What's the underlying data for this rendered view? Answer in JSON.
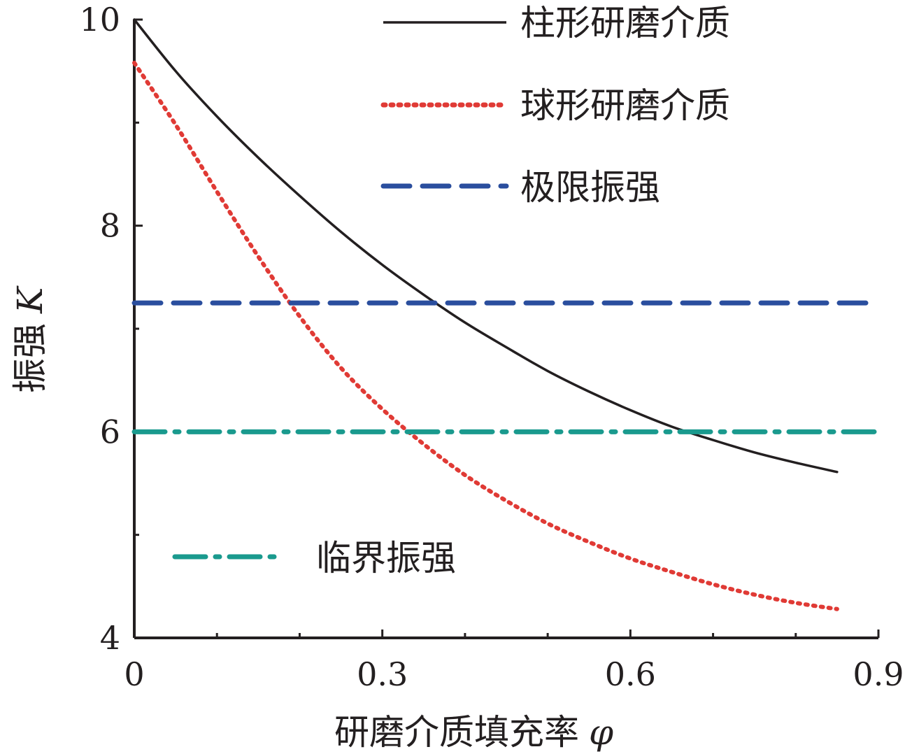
{
  "chart_data": {
    "type": "line",
    "xlabel": "研磨介质填充率",
    "xlabel_symbol": "φ",
    "ylabel": "振强",
    "ylabel_symbol": "K",
    "xlim": [
      0,
      0.9
    ],
    "ylim": [
      4,
      10
    ],
    "x_ticks": [
      {
        "value": 0,
        "label": "0"
      },
      {
        "value": 0.3,
        "label": "0.3"
      },
      {
        "value": 0.6,
        "label": "0.6"
      },
      {
        "value": 0.9,
        "label": "0.9"
      }
    ],
    "x_minor_ticks": [
      0.1,
      0.2,
      0.4,
      0.5,
      0.7,
      0.8
    ],
    "y_ticks": [
      {
        "value": 4,
        "label": "4"
      },
      {
        "value": 6,
        "label": "6"
      },
      {
        "value": 8,
        "label": "8"
      },
      {
        "value": 10,
        "label": "10"
      }
    ],
    "y_minor_ticks": [
      5,
      7,
      9
    ],
    "grid": false,
    "series": [
      {
        "name": "柱形研磨介质",
        "style": "solid",
        "color": "#231f20",
        "x": [
          0,
          0.05,
          0.1,
          0.15,
          0.2,
          0.25,
          0.3,
          0.35,
          0.4,
          0.45,
          0.5,
          0.55,
          0.6,
          0.65,
          0.7,
          0.75,
          0.8,
          0.85
        ],
        "y": [
          10.0,
          9.5,
          9.06,
          8.66,
          8.29,
          7.94,
          7.62,
          7.33,
          7.06,
          6.82,
          6.59,
          6.39,
          6.21,
          6.05,
          5.92,
          5.8,
          5.7,
          5.61
        ]
      },
      {
        "name": "球形研磨介质",
        "style": "dotted",
        "color": "#e03a35",
        "x": [
          0,
          0.05,
          0.1,
          0.15,
          0.2,
          0.25,
          0.3,
          0.35,
          0.4,
          0.45,
          0.5,
          0.55,
          0.6,
          0.65,
          0.7,
          0.75,
          0.8,
          0.85
        ],
        "y": [
          9.58,
          8.98,
          8.33,
          7.7,
          7.12,
          6.62,
          6.22,
          5.88,
          5.58,
          5.33,
          5.11,
          4.93,
          4.77,
          4.64,
          4.52,
          4.42,
          4.34,
          4.28
        ]
      },
      {
        "name": "极限振强",
        "style": "dashed",
        "color": "#2a4e9e",
        "x": [
          0,
          0.9
        ],
        "y": [
          7.25,
          7.25
        ]
      },
      {
        "name": "临界振强",
        "style": "dashdot",
        "color": "#1a9a8e",
        "x": [
          0,
          0.9
        ],
        "y": [
          6.0,
          6.0
        ]
      }
    ],
    "legend": [
      {
        "label": "柱形研磨介质",
        "placement": "top"
      },
      {
        "label": "球形研磨介质",
        "placement": "top"
      },
      {
        "label": "极限振强",
        "placement": "top"
      },
      {
        "label": "临界振强",
        "placement": "bottom-left"
      }
    ]
  }
}
